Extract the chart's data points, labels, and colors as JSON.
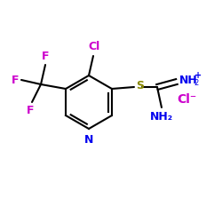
{
  "background_color": "#ffffff",
  "bond_color": "#000000",
  "atom_colors": {
    "Cl_sub": "#cc00cc",
    "F": "#cc00cc",
    "N": "#0000ee",
    "S": "#888800",
    "Cl_salt": "#cc00cc"
  },
  "fig_width": 2.5,
  "fig_height": 2.5,
  "dpi": 100
}
